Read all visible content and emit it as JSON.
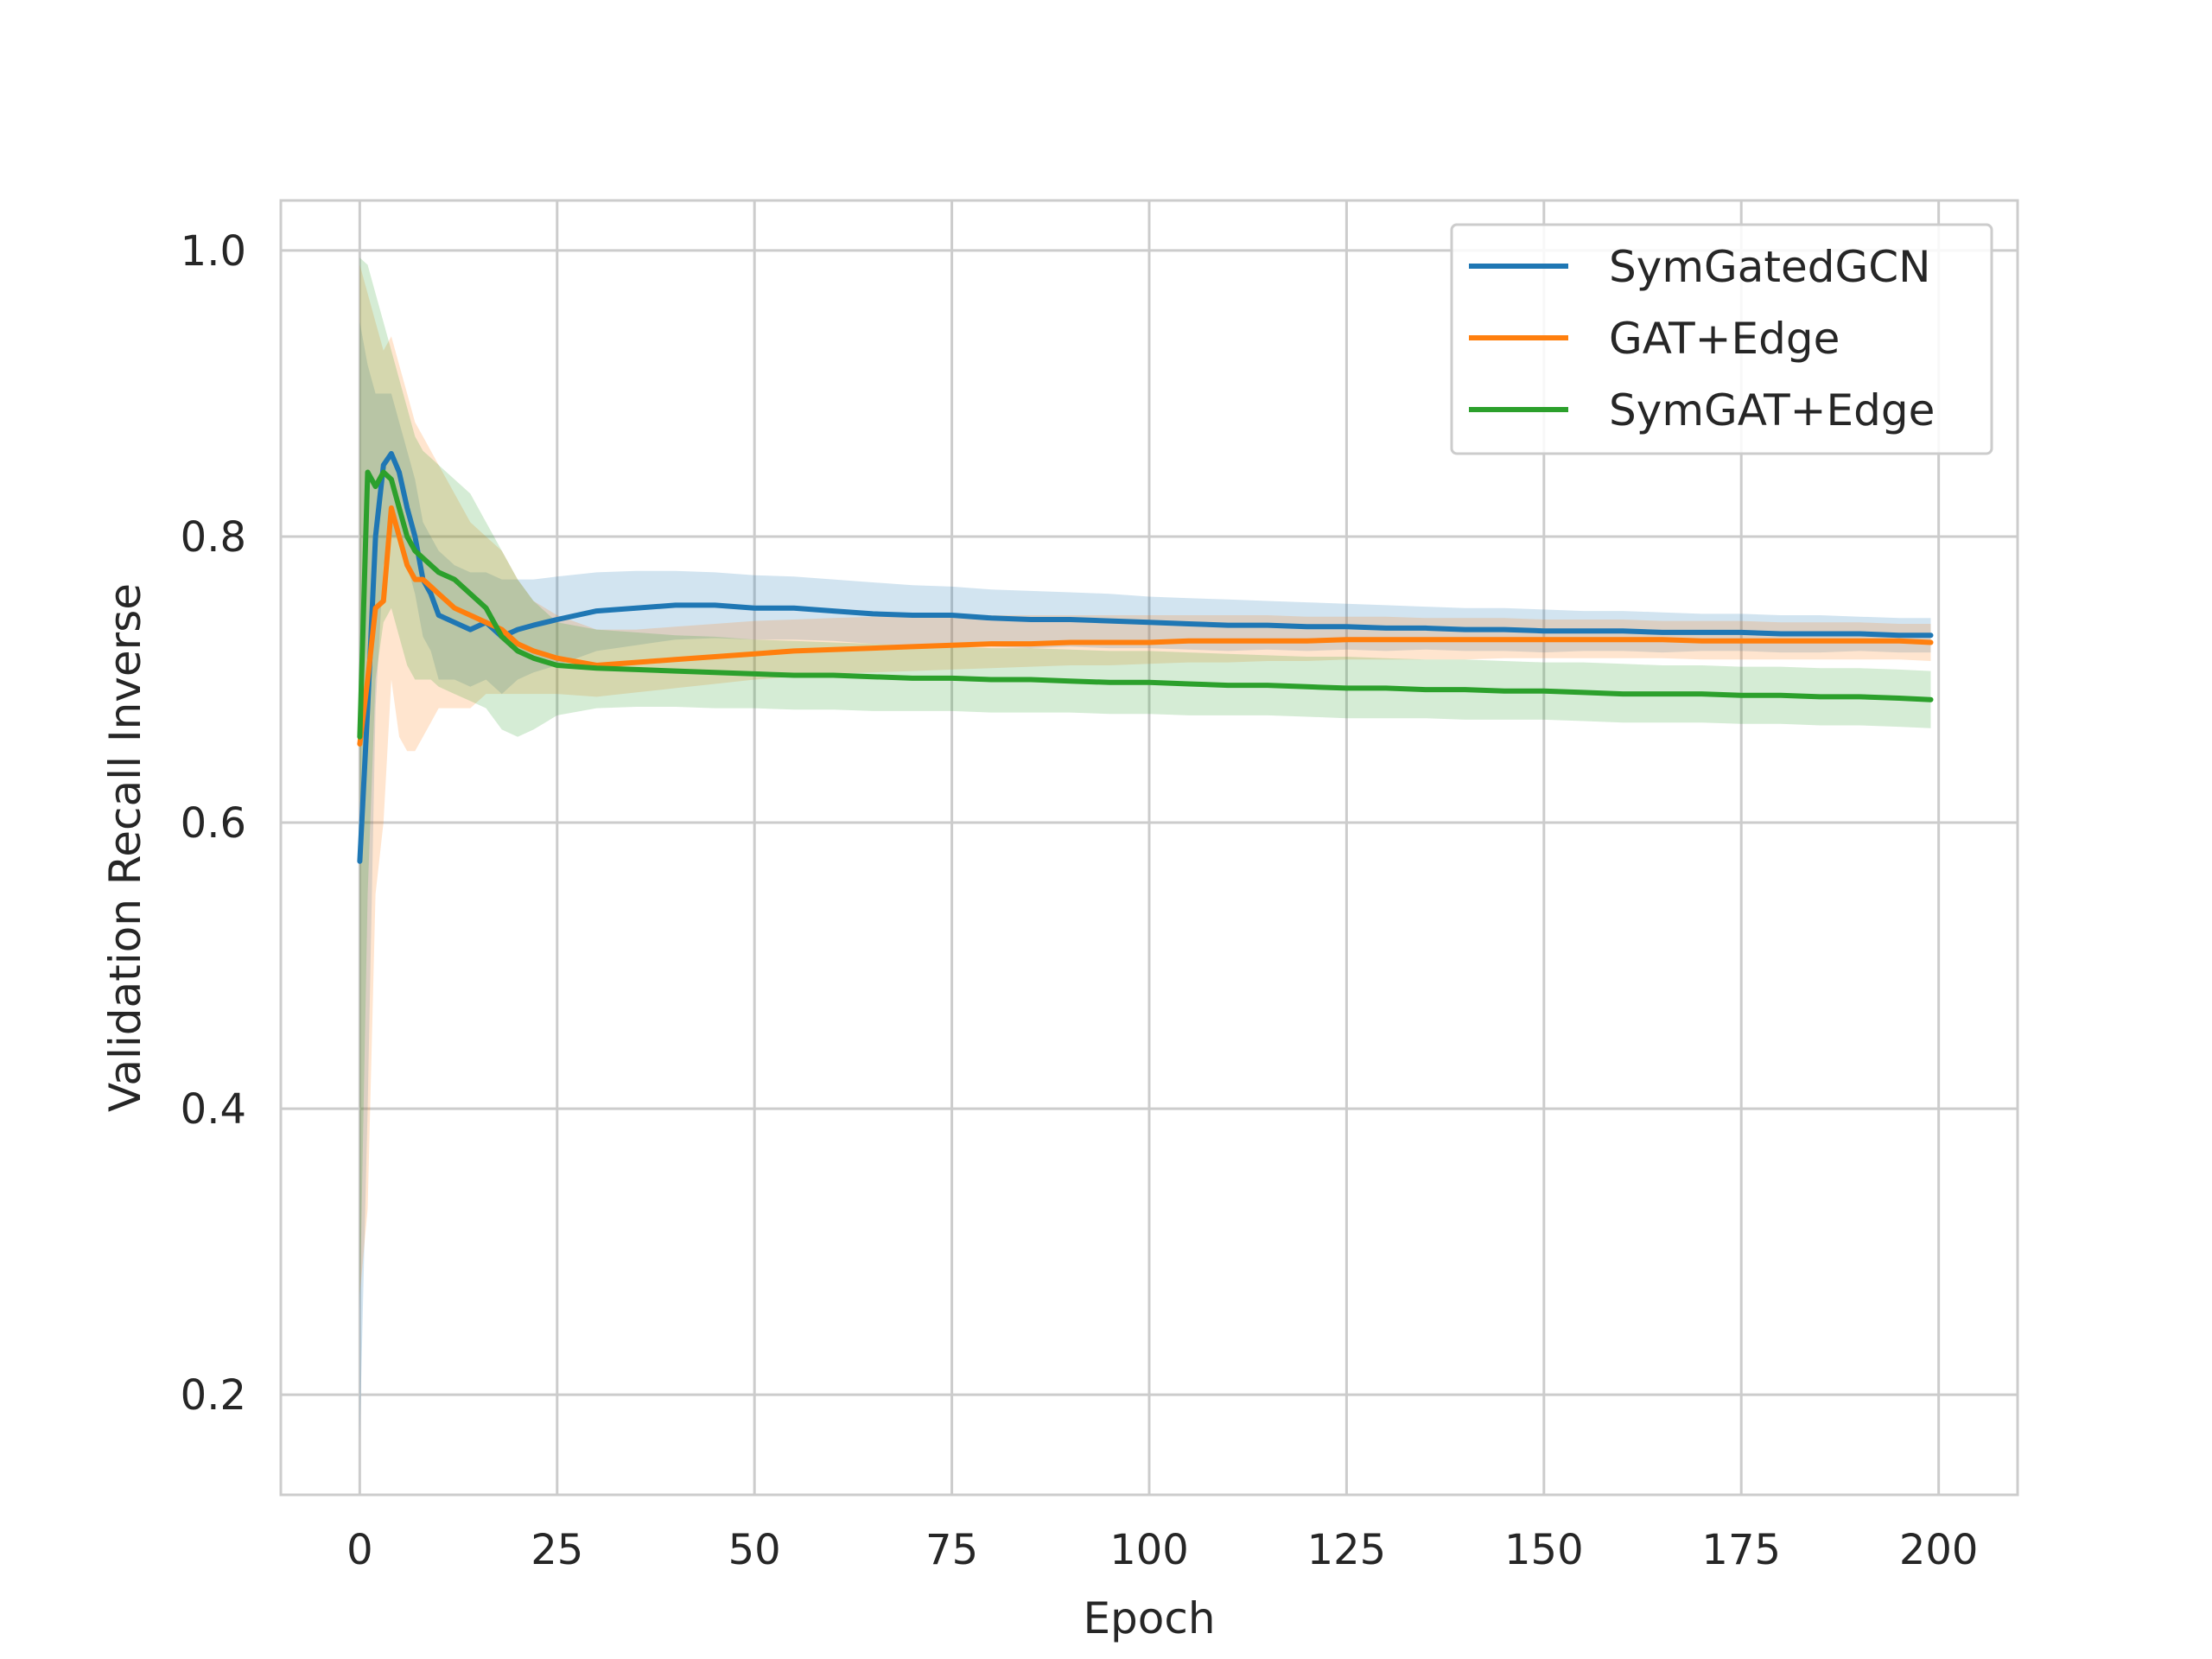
{
  "chart_data": {
    "type": "line",
    "title": "",
    "xlabel": "Epoch",
    "ylabel": "Validation Recall Inverse",
    "xlim": [
      -10,
      210
    ],
    "ylim": [
      0.13,
      1.035
    ],
    "xticks": [
      0,
      25,
      50,
      75,
      100,
      125,
      150,
      175,
      200
    ],
    "xtick_labels": [
      "0",
      "25",
      "50",
      "75",
      "100",
      "125",
      "150",
      "175",
      "200"
    ],
    "yticks": [
      0.2,
      0.4,
      0.6,
      0.8,
      1.0
    ],
    "ytick_labels": [
      "0.2",
      "0.4",
      "0.6",
      "0.8",
      "1.0"
    ],
    "grid": true,
    "legend_position": "top-right",
    "confidence_bands": true,
    "series": [
      {
        "name": "SymGatedGCN",
        "color": "#1f77b4",
        "x": [
          0,
          1,
          2,
          3,
          4,
          5,
          6,
          7,
          8,
          9,
          10,
          12,
          14,
          16,
          18,
          20,
          22,
          25,
          30,
          35,
          40,
          45,
          50,
          55,
          60,
          65,
          70,
          75,
          80,
          85,
          90,
          95,
          100,
          105,
          110,
          115,
          120,
          125,
          130,
          135,
          140,
          145,
          150,
          155,
          160,
          165,
          170,
          175,
          180,
          185,
          190,
          195,
          199
        ],
        "values": [
          0.573,
          0.68,
          0.8,
          0.85,
          0.858,
          0.845,
          0.82,
          0.8,
          0.77,
          0.76,
          0.745,
          0.74,
          0.735,
          0.74,
          0.73,
          0.735,
          0.738,
          0.742,
          0.748,
          0.75,
          0.752,
          0.752,
          0.75,
          0.75,
          0.748,
          0.746,
          0.745,
          0.745,
          0.743,
          0.742,
          0.742,
          0.741,
          0.74,
          0.739,
          0.738,
          0.738,
          0.737,
          0.737,
          0.736,
          0.736,
          0.735,
          0.735,
          0.734,
          0.734,
          0.734,
          0.733,
          0.733,
          0.733,
          0.732,
          0.732,
          0.732,
          0.731,
          0.731
        ],
        "upper": [
          0.95,
          0.92,
          0.9,
          0.9,
          0.9,
          0.88,
          0.86,
          0.84,
          0.81,
          0.8,
          0.79,
          0.78,
          0.775,
          0.775,
          0.77,
          0.77,
          0.77,
          0.772,
          0.775,
          0.776,
          0.776,
          0.775,
          0.773,
          0.772,
          0.77,
          0.768,
          0.766,
          0.765,
          0.763,
          0.762,
          0.761,
          0.76,
          0.758,
          0.757,
          0.756,
          0.755,
          0.754,
          0.753,
          0.752,
          0.751,
          0.75,
          0.75,
          0.749,
          0.748,
          0.748,
          0.747,
          0.746,
          0.746,
          0.745,
          0.745,
          0.744,
          0.743,
          0.743
        ],
        "lower": [
          0.17,
          0.4,
          0.68,
          0.78,
          0.8,
          0.8,
          0.78,
          0.76,
          0.73,
          0.72,
          0.7,
          0.7,
          0.695,
          0.7,
          0.69,
          0.7,
          0.705,
          0.71,
          0.72,
          0.724,
          0.728,
          0.729,
          0.728,
          0.728,
          0.727,
          0.725,
          0.724,
          0.725,
          0.723,
          0.722,
          0.723,
          0.722,
          0.722,
          0.721,
          0.72,
          0.721,
          0.72,
          0.721,
          0.72,
          0.721,
          0.72,
          0.72,
          0.719,
          0.72,
          0.72,
          0.719,
          0.72,
          0.72,
          0.719,
          0.719,
          0.72,
          0.719,
          0.719
        ]
      },
      {
        "name": "GAT+Edge",
        "color": "#ff7f0e",
        "x": [
          0,
          1,
          2,
          3,
          4,
          5,
          6,
          7,
          8,
          9,
          10,
          12,
          14,
          16,
          18,
          20,
          22,
          25,
          30,
          35,
          40,
          45,
          50,
          55,
          60,
          65,
          70,
          75,
          80,
          85,
          90,
          95,
          100,
          105,
          110,
          115,
          120,
          125,
          130,
          135,
          140,
          145,
          150,
          155,
          160,
          165,
          170,
          175,
          180,
          185,
          190,
          195,
          199
        ],
        "values": [
          0.655,
          0.7,
          0.75,
          0.755,
          0.82,
          0.8,
          0.78,
          0.77,
          0.77,
          0.765,
          0.76,
          0.75,
          0.745,
          0.74,
          0.735,
          0.725,
          0.72,
          0.715,
          0.71,
          0.712,
          0.714,
          0.716,
          0.718,
          0.72,
          0.721,
          0.722,
          0.723,
          0.724,
          0.725,
          0.725,
          0.726,
          0.726,
          0.726,
          0.727,
          0.727,
          0.727,
          0.727,
          0.728,
          0.728,
          0.728,
          0.728,
          0.728,
          0.728,
          0.728,
          0.728,
          0.728,
          0.727,
          0.727,
          0.727,
          0.727,
          0.727,
          0.727,
          0.726
        ],
        "upper": [
          0.99,
          0.97,
          0.95,
          0.93,
          0.94,
          0.92,
          0.9,
          0.88,
          0.87,
          0.86,
          0.85,
          0.83,
          0.81,
          0.8,
          0.79,
          0.77,
          0.755,
          0.745,
          0.735,
          0.735,
          0.737,
          0.739,
          0.741,
          0.742,
          0.743,
          0.744,
          0.744,
          0.745,
          0.745,
          0.745,
          0.745,
          0.745,
          0.745,
          0.745,
          0.745,
          0.745,
          0.744,
          0.744,
          0.744,
          0.743,
          0.743,
          0.743,
          0.742,
          0.742,
          0.742,
          0.741,
          0.741,
          0.741,
          0.74,
          0.74,
          0.74,
          0.739,
          0.739
        ],
        "lower": [
          0.27,
          0.33,
          0.55,
          0.6,
          0.7,
          0.66,
          0.65,
          0.65,
          0.66,
          0.67,
          0.68,
          0.68,
          0.68,
          0.69,
          0.69,
          0.69,
          0.69,
          0.69,
          0.688,
          0.691,
          0.694,
          0.697,
          0.7,
          0.702,
          0.704,
          0.705,
          0.706,
          0.707,
          0.708,
          0.709,
          0.71,
          0.71,
          0.711,
          0.712,
          0.712,
          0.713,
          0.713,
          0.714,
          0.714,
          0.714,
          0.714,
          0.715,
          0.715,
          0.715,
          0.715,
          0.715,
          0.714,
          0.714,
          0.714,
          0.714,
          0.714,
          0.714,
          0.713
        ]
      },
      {
        "name": "SymGAT+Edge",
        "color": "#2ca02c",
        "x": [
          0,
          1,
          2,
          3,
          4,
          5,
          6,
          7,
          8,
          9,
          10,
          12,
          14,
          16,
          18,
          20,
          22,
          25,
          30,
          35,
          40,
          45,
          50,
          55,
          60,
          65,
          70,
          75,
          80,
          85,
          90,
          95,
          100,
          105,
          110,
          115,
          120,
          125,
          130,
          135,
          140,
          145,
          150,
          155,
          160,
          165,
          170,
          175,
          180,
          185,
          190,
          195,
          199
        ],
        "values": [
          0.66,
          0.845,
          0.835,
          0.845,
          0.84,
          0.82,
          0.8,
          0.79,
          0.785,
          0.78,
          0.775,
          0.77,
          0.76,
          0.75,
          0.73,
          0.72,
          0.715,
          0.71,
          0.708,
          0.707,
          0.706,
          0.705,
          0.704,
          0.703,
          0.703,
          0.702,
          0.701,
          0.701,
          0.7,
          0.7,
          0.699,
          0.698,
          0.698,
          0.697,
          0.696,
          0.696,
          0.695,
          0.694,
          0.694,
          0.693,
          0.693,
          0.692,
          0.692,
          0.691,
          0.69,
          0.69,
          0.69,
          0.689,
          0.689,
          0.688,
          0.688,
          0.687,
          0.686
        ],
        "upper": [
          0.995,
          0.99,
          0.97,
          0.95,
          0.93,
          0.91,
          0.89,
          0.87,
          0.86,
          0.855,
          0.85,
          0.84,
          0.83,
          0.81,
          0.79,
          0.77,
          0.755,
          0.74,
          0.735,
          0.733,
          0.731,
          0.73,
          0.728,
          0.727,
          0.726,
          0.725,
          0.724,
          0.723,
          0.722,
          0.722,
          0.721,
          0.72,
          0.72,
          0.719,
          0.718,
          0.717,
          0.716,
          0.716,
          0.715,
          0.714,
          0.714,
          0.713,
          0.712,
          0.712,
          0.711,
          0.71,
          0.71,
          0.709,
          0.709,
          0.708,
          0.708,
          0.707,
          0.706
        ],
        "lower": [
          0.26,
          0.55,
          0.7,
          0.74,
          0.75,
          0.73,
          0.71,
          0.7,
          0.7,
          0.7,
          0.695,
          0.69,
          0.685,
          0.68,
          0.665,
          0.66,
          0.665,
          0.675,
          0.68,
          0.681,
          0.681,
          0.68,
          0.68,
          0.679,
          0.679,
          0.678,
          0.678,
          0.678,
          0.677,
          0.677,
          0.677,
          0.676,
          0.676,
          0.675,
          0.675,
          0.675,
          0.674,
          0.673,
          0.673,
          0.673,
          0.672,
          0.672,
          0.672,
          0.671,
          0.67,
          0.67,
          0.67,
          0.669,
          0.669,
          0.668,
          0.668,
          0.667,
          0.666
        ]
      }
    ]
  }
}
